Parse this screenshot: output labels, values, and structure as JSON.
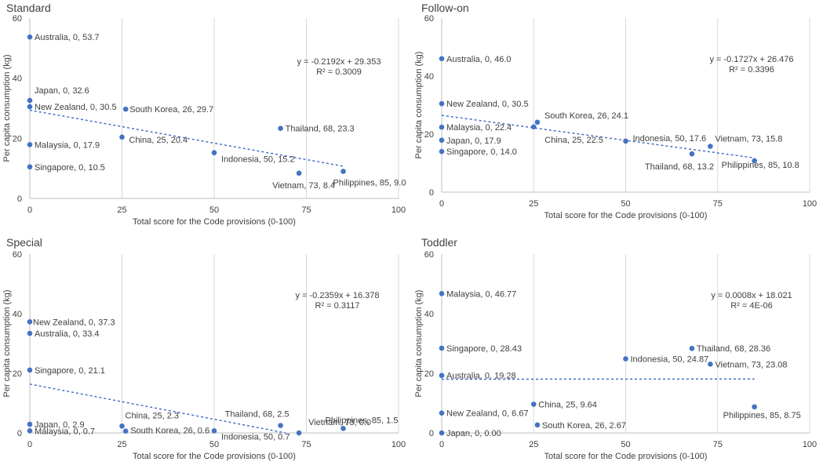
{
  "chart_data": [
    {
      "type": "scatter",
      "title": "Standard",
      "xlabel": "Total score for the Code provisions (0-100)",
      "ylabel": "Per capita consumption (kg)",
      "xlim": [
        0,
        100
      ],
      "ylim": [
        0,
        60
      ],
      "xticks": [
        0,
        25,
        50,
        75,
        100
      ],
      "yticks": [
        0,
        20,
        40,
        60
      ],
      "grid": "vertical",
      "point_color": "#4472C4",
      "points": [
        {
          "x": 0,
          "y": 53.7,
          "label": "Australia, 0, 53.7"
        },
        {
          "x": 0,
          "y": 32.6,
          "label": "Japan, 0, 32.6"
        },
        {
          "x": 0,
          "y": 30.5,
          "label": "New Zealand, 0, 30.5"
        },
        {
          "x": 0,
          "y": 17.9,
          "label": "Malaysia, 0, 17.9"
        },
        {
          "x": 0,
          "y": 10.5,
          "label": "Singapore, 0, 10.5"
        },
        {
          "x": 26,
          "y": 29.7,
          "label": "South Korea, 26, 29.7"
        },
        {
          "x": 25,
          "y": 20.4,
          "label": "China, 25, 20.4"
        },
        {
          "x": 68,
          "y": 23.3,
          "label": "Thailand, 68, 23.3"
        },
        {
          "x": 50,
          "y": 15.2,
          "label": "Indonesia, 50, 15.2"
        },
        {
          "x": 73,
          "y": 8.4,
          "label": "Vietnam, 73, 8.4"
        },
        {
          "x": 85,
          "y": 9.0,
          "label": "Philippines, 85, 9.0"
        }
      ],
      "trendline": {
        "slope": -0.2192,
        "intercept": 29.353,
        "x_range": [
          0,
          85
        ],
        "equation": "y = -0.2192x + 29.353",
        "r2": "R² = 0.3009"
      }
    },
    {
      "type": "scatter",
      "title": "Follow-on",
      "xlabel": "Total score for the Code provisions (0-100)",
      "ylabel": "Per capita consumption (kg)",
      "xlim": [
        0,
        100
      ],
      "ylim": [
        0,
        60
      ],
      "xticks": [
        0,
        25,
        50,
        75,
        100
      ],
      "yticks": [
        0,
        20,
        40,
        60
      ],
      "grid": "vertical",
      "point_color": "#4472C4",
      "points": [
        {
          "x": 0,
          "y": 46.0,
          "label": "Australia, 0, 46.0"
        },
        {
          "x": 0,
          "y": 30.5,
          "label": "New Zealand, 0, 30.5"
        },
        {
          "x": 0,
          "y": 22.4,
          "label": "Malaysia, 0, 22.4"
        },
        {
          "x": 0,
          "y": 17.9,
          "label": "Japan, 0, 17.9"
        },
        {
          "x": 0,
          "y": 14.0,
          "label": "Singapore, 0, 14.0"
        },
        {
          "x": 26,
          "y": 24.1,
          "label": "South Korea, 26, 24.1"
        },
        {
          "x": 25,
          "y": 22.5,
          "label": "China, 25, 22.5"
        },
        {
          "x": 50,
          "y": 17.6,
          "label": "Indonesia, 50, 17.6"
        },
        {
          "x": 73,
          "y": 15.8,
          "label": "Vietnam, 73, 15.8"
        },
        {
          "x": 68,
          "y": 13.2,
          "label": "Thailand, 68, 13.2"
        },
        {
          "x": 85,
          "y": 10.8,
          "label": "Philippines, 85, 10.8"
        }
      ],
      "trendline": {
        "slope": -0.1727,
        "intercept": 26.476,
        "x_range": [
          0,
          85
        ],
        "equation": "y = -0.1727x + 26.476",
        "r2": "R² = 0.3396"
      }
    },
    {
      "type": "scatter",
      "title": "Special",
      "xlabel": "Total score for the Code provisions (0-100)",
      "ylabel": "Per capita consumption (kg)",
      "xlim": [
        0,
        100
      ],
      "ylim": [
        0,
        60
      ],
      "xticks": [
        0,
        25,
        50,
        75,
        100
      ],
      "yticks": [
        0,
        20,
        40,
        60
      ],
      "grid": "vertical",
      "point_color": "#4472C4",
      "points": [
        {
          "x": 0,
          "y": 37.3,
          "label": "New Zealand, 0, 37.3"
        },
        {
          "x": 0,
          "y": 33.4,
          "label": "Australia, 0, 33.4"
        },
        {
          "x": 0,
          "y": 21.1,
          "label": "Singapore, 0, 21.1"
        },
        {
          "x": 0,
          "y": 2.9,
          "label": "Japan, 0, 2.9"
        },
        {
          "x": 0,
          "y": 0.7,
          "label": "Malaysia, 0, 0.7"
        },
        {
          "x": 25,
          "y": 2.3,
          "label": "China, 25, 2.3"
        },
        {
          "x": 26,
          "y": 0.6,
          "label": "South Korea, 26, 0.6"
        },
        {
          "x": 68,
          "y": 2.5,
          "label": "Thailand, 68, 2.5"
        },
        {
          "x": 73,
          "y": 0.0,
          "label": "Vietnam, 73, 0.0"
        },
        {
          "x": 50,
          "y": 0.7,
          "label": "Indonesia, 50, 0.7"
        },
        {
          "x": 85,
          "y": 1.5,
          "label": "Philippines, 85, 1.5"
        }
      ],
      "trendline": {
        "slope": -0.2359,
        "intercept": 16.378,
        "x_range": [
          0,
          69.4
        ],
        "equation": "y = -0.2359x + 16.378",
        "r2": "R² = 0.3117"
      }
    },
    {
      "type": "scatter",
      "title": "Toddler",
      "xlabel": "Total score for the Code provisions (0-100)",
      "ylabel": "Per capita consumption (kg)",
      "xlim": [
        0,
        100
      ],
      "ylim": [
        0,
        60
      ],
      "xticks": [
        0,
        25,
        50,
        75,
        100
      ],
      "yticks": [
        0,
        20,
        40,
        60
      ],
      "grid": "vertical",
      "point_color": "#4472C4",
      "points": [
        {
          "x": 0,
          "y": 46.77,
          "label": "Malaysia, 0, 46.77"
        },
        {
          "x": 0,
          "y": 28.43,
          "label": "Singapore, 0, 28.43"
        },
        {
          "x": 0,
          "y": 19.28,
          "label": "Australia, 0, 19.28"
        },
        {
          "x": 0,
          "y": 6.67,
          "label": "New Zealand, 0, 6.67"
        },
        {
          "x": 0,
          "y": 0.0,
          "label": "Japan, 0, 0.00"
        },
        {
          "x": 25,
          "y": 9.64,
          "label": "China, 25, 9.64"
        },
        {
          "x": 26,
          "y": 2.67,
          "label": "South Korea, 26, 2.67"
        },
        {
          "x": 50,
          "y": 24.87,
          "label": "Indonesia, 50, 24.87"
        },
        {
          "x": 68,
          "y": 28.36,
          "label": "Thailand, 68, 28.36"
        },
        {
          "x": 73,
          "y": 23.08,
          "label": "Vietnam, 73, 23.08"
        },
        {
          "x": 85,
          "y": 8.75,
          "label": "Philippines, 85, 8.75"
        }
      ],
      "trendline": {
        "slope": 0.0008,
        "intercept": 18.021,
        "x_range": [
          0,
          85
        ],
        "equation": "y = 0.0008x + 18.021",
        "r2": "R² = 4E-06"
      }
    }
  ]
}
